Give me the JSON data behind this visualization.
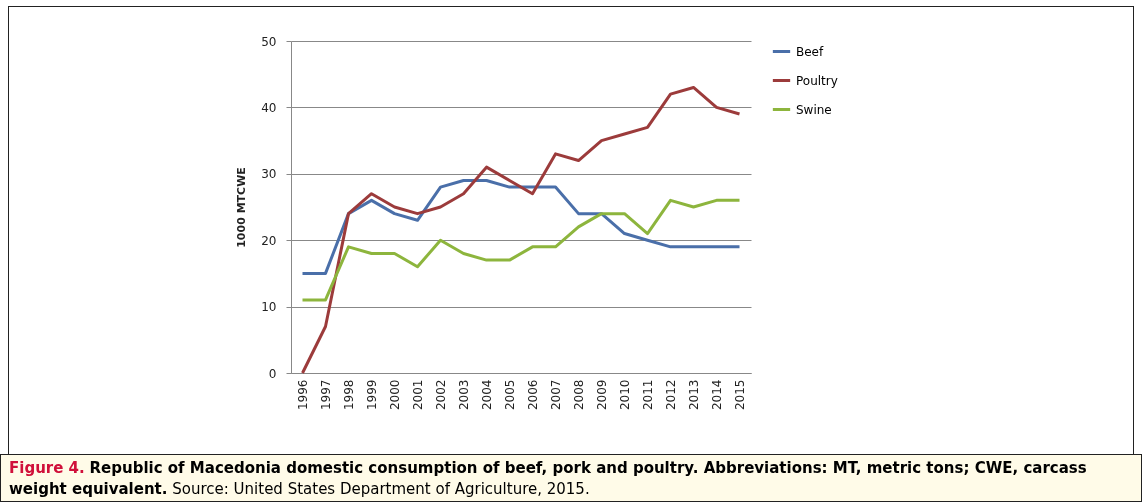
{
  "chart_data": {
    "type": "line",
    "title": "Figure 4.",
    "subtitle": "Republic of Macedonia domestic consumption of beef, pork and poultry. Abbreviations: MT, metric tons; CWE, carcass weight equivalent.",
    "annotations": [
      "Source: United States Department of Agriculture, 2015."
    ],
    "ylabel": "1000 MTCWE",
    "categories": [
      "1996",
      "1997",
      "1998",
      "1999",
      "2000",
      "2001",
      "2002",
      "2003",
      "2004",
      "2005",
      "2006",
      "2007",
      "2008",
      "2009",
      "2010",
      "2011",
      "2012",
      "2013",
      "2014",
      "2015"
    ],
    "series": [
      {
        "name": "Beef",
        "color": "#4a6fa9",
        "values": [
          15,
          15,
          24,
          26,
          24,
          23,
          28,
          29,
          29,
          28,
          28,
          28,
          24,
          24,
          21,
          20,
          19,
          19,
          19,
          19
        ]
      },
      {
        "name": "Poultry",
        "color": "#9c3b3b",
        "values": [
          0,
          7,
          24,
          27,
          25,
          24,
          25,
          27,
          31,
          29,
          27,
          33,
          32,
          35,
          36,
          37,
          42,
          43,
          40,
          39
        ]
      },
      {
        "name": "Swine",
        "color": "#8db53d",
        "values": [
          11,
          11,
          19,
          18,
          18,
          16,
          20,
          18,
          17,
          17,
          19,
          19,
          22,
          24,
          24,
          21,
          26,
          25,
          26,
          26
        ]
      }
    ],
    "ylim": [
      0,
      50
    ],
    "yticks": [
      0,
      10,
      20,
      30,
      40,
      50
    ],
    "grid": "y",
    "legend": "right",
    "line_style": "solid",
    "marker": "none"
  }
}
